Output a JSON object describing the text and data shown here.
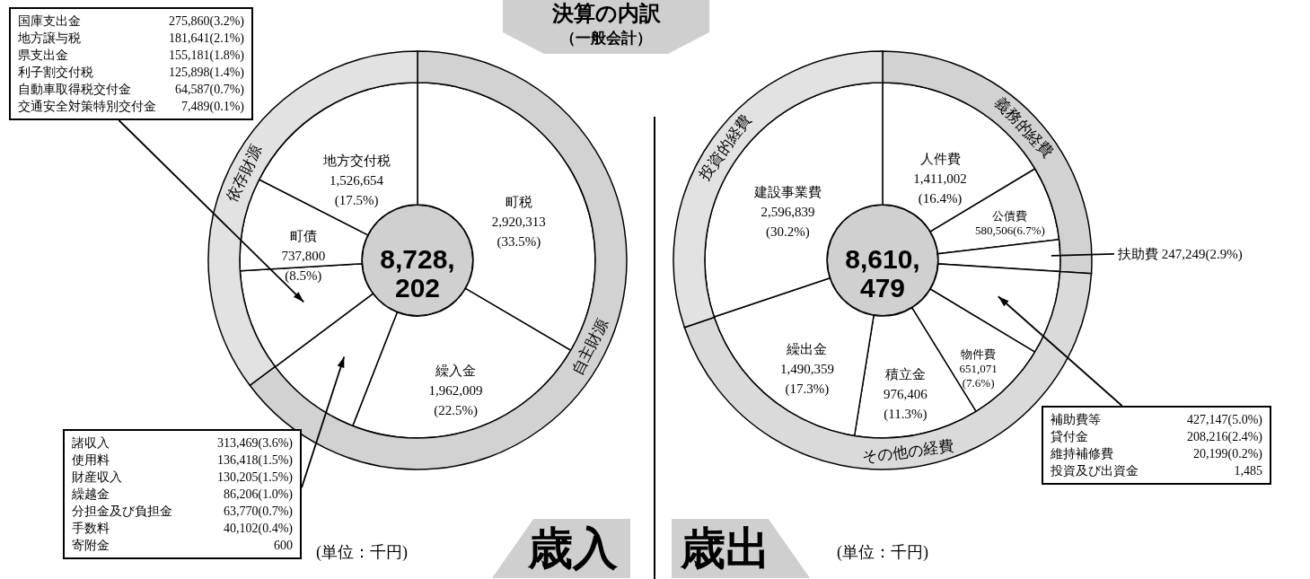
{
  "chart_data": [
    {
      "type": "other",
      "title": "決算の内訳",
      "subtitle": "（一般会計）"
    },
    {
      "type": "donut",
      "title": "歳入",
      "categories": [
        "町税",
        "繰入金",
        null,
        null,
        "町債",
        "地方交付税"
      ],
      "values": [
        2920313,
        1962009,
        770770,
        810656,
        737800,
        1526654
      ],
      "value_labels": [
        "2,920,313 (33.5%)",
        "1,962,009 (22.5%)",
        null,
        null,
        "737,800 (8.5%)",
        "1,526,654 (17.5%)"
      ],
      "colors": [
        "#ffffff",
        "#ffffff",
        "#ffffff",
        "#ffffff",
        "#ffffff",
        "#ffffff"
      ],
      "annotations": [
        "8,728,202",
        "(単位：千円)"
      ]
    },
    {
      "type": "donut",
      "categories": [
        "自主財源",
        "依存財源"
      ],
      "values": [
        64.8,
        35.2
      ],
      "colors": [
        "#d2d2d2",
        "#e2e2e2"
      ]
    },
    {
      "type": "other",
      "annotations": [
        "国庫支出金 275,860(3.2%)",
        "地方譲与税 181,641(2.1%)",
        "県支出金 155,181(1.8%)",
        "利子割交付税 125,898(1.4%)",
        "自動車取得税交付金 64,587(0.7%)",
        "交通安全対策特別交付金 7,489(0.1%)"
      ]
    },
    {
      "type": "other",
      "annotations": [
        "諸収入 313,469(3.6%)",
        "使用料 136,418(1.5%)",
        "財産収入 130,205(1.5%)",
        "繰越金 86,206(1.0%)",
        "分担金及び負担金 63,770(0.7%)",
        "手数料 40,102(0.4%)",
        "寄附金 600"
      ]
    },
    {
      "type": "donut",
      "title": "歳出",
      "categories": [
        "人件費",
        "公債費",
        "扶助費",
        null,
        "物件費",
        "積立金",
        "繰出金",
        "建設事業費"
      ],
      "values": [
        1411002,
        580506,
        247249,
        657047,
        651071,
        976406,
        1490359,
        2596839
      ],
      "value_labels": [
        "1,411,002 (16.4%)",
        "580,506(6.7%)",
        "247,249(2.9%)",
        null,
        "651,071 (7.6%)",
        "976,406 (11.3%)",
        "1,490,359 (17.3%)",
        "2,596,839 (30.2%)"
      ],
      "colors": [
        "#ffffff",
        "#ffffff",
        "#ffffff",
        "#ffffff",
        "#ffffff",
        "#ffffff",
        "#ffffff",
        "#ffffff"
      ],
      "annotations": [
        "8,610,479",
        "(単位：千円)"
      ]
    },
    {
      "type": "donut",
      "categories": [
        "義務的経費",
        "その他の経費",
        "投資的経費"
      ],
      "values": [
        26.0,
        43.8,
        30.2
      ],
      "colors": [
        "#d2d2d2",
        "#dadada",
        "#e2e2e2"
      ]
    },
    {
      "type": "other",
      "annotations": [
        "補助費等 427,147(5.0%)",
        "貸付金 208,216(2.4%)",
        "維持補修費 20,199(0.2%)",
        "投資及び出資金 1,485"
      ]
    }
  ]
}
